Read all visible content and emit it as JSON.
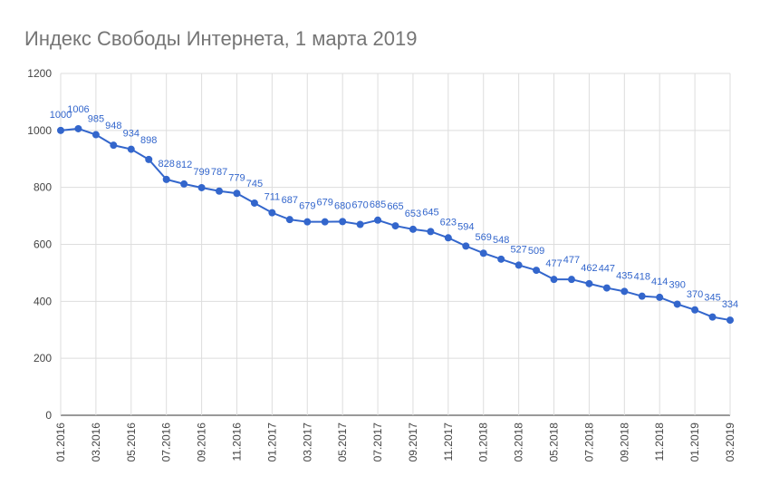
{
  "chart_data": {
    "type": "line",
    "title": "Индекс Свободы Интернета,  1 марта  2019",
    "categories": [
      "01.2016",
      null,
      "03.2016",
      null,
      "05.2016",
      null,
      "07.2016",
      null,
      "09.2016",
      null,
      "11.2016",
      null,
      "01.2017",
      null,
      "03.2017",
      null,
      "05.2017",
      null,
      "07.2017",
      null,
      "09.2017",
      null,
      "11.2017",
      null,
      "01.2018",
      null,
      "03.2018",
      null,
      "05.2018",
      null,
      "07.2018",
      null,
      "09.2018",
      null,
      "11.2018",
      null,
      "01.2019",
      null,
      "03.2019"
    ],
    "series": [
      {
        "name": "Индекс",
        "color": "#3366cc",
        "values": [
          1000,
          1006,
          985,
          948,
          934,
          898,
          828,
          812,
          799,
          787,
          779,
          745,
          711,
          687,
          679,
          679,
          680,
          670,
          685,
          665,
          653,
          645,
          623,
          594,
          569,
          548,
          527,
          509,
          477,
          477,
          462,
          447,
          435,
          418,
          414,
          390,
          370,
          345,
          334
        ]
      }
    ],
    "ylim": [
      0,
      1200
    ],
    "yticks": [
      0,
      200,
      400,
      600,
      800,
      1000,
      1200
    ],
    "grid": true
  }
}
